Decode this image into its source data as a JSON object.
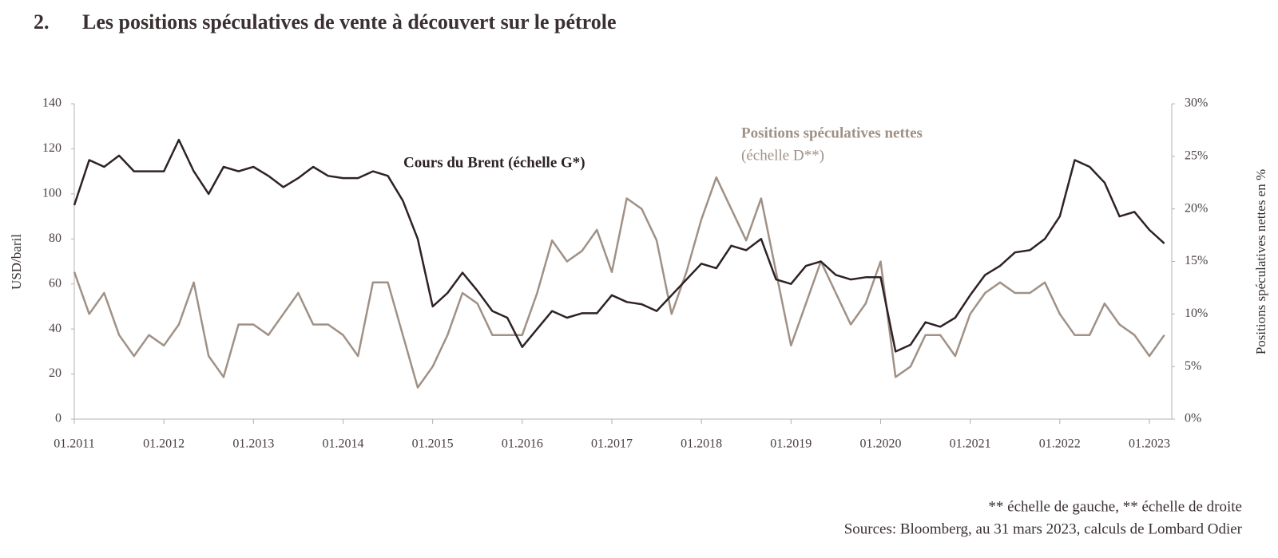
{
  "chart_data": {
    "type": "line",
    "number": "2.",
    "title": "Les positions spéculatives de vente à découvert sur le pétrole",
    "ylabel": "USD/baril",
    "y2label": "Positions spéculatives nettes en %",
    "annotations": [
      "Cours du Brent (échelle G*)",
      "Positions spéculatives nettes",
      "(échelle D**)"
    ],
    "footnotes": [
      "** échelle de gauche, ** échelle de droite",
      "Sources: Bloomberg, au 31 mars 2023, calculs de Lombard Odier"
    ],
    "x": [
      "01.2011",
      "03.2011",
      "05.2011",
      "07.2011",
      "09.2011",
      "11.2011",
      "01.2012",
      "03.2012",
      "05.2012",
      "07.2012",
      "09.2012",
      "11.2012",
      "01.2013",
      "03.2013",
      "05.2013",
      "07.2013",
      "09.2013",
      "11.2013",
      "01.2014",
      "03.2014",
      "05.2014",
      "07.2014",
      "09.2014",
      "11.2014",
      "01.2015",
      "03.2015",
      "05.2015",
      "07.2015",
      "09.2015",
      "11.2015",
      "01.2016",
      "03.2016",
      "05.2016",
      "07.2016",
      "09.2016",
      "11.2016",
      "01.2017",
      "03.2017",
      "05.2017",
      "07.2017",
      "09.2017",
      "11.2017",
      "01.2018",
      "03.2018",
      "05.2018",
      "07.2018",
      "09.2018",
      "11.2018",
      "01.2019",
      "03.2019",
      "05.2019",
      "07.2019",
      "09.2019",
      "11.2019",
      "01.2020",
      "03.2020",
      "05.2020",
      "07.2020",
      "09.2020",
      "11.2020",
      "01.2021",
      "03.2021",
      "05.2021",
      "07.2021",
      "09.2021",
      "11.2021",
      "01.2022",
      "03.2022",
      "05.2022",
      "07.2022",
      "09.2022",
      "11.2022",
      "01.2023",
      "03.2023"
    ],
    "series": [
      {
        "name": "Cours du Brent",
        "color": "#2e2224",
        "axis": "y",
        "values": [
          95,
          115,
          112,
          117,
          110,
          110,
          110,
          124,
          110,
          100,
          112,
          110,
          112,
          108,
          103,
          107,
          112,
          108,
          107,
          107,
          110,
          108,
          97,
          80,
          50,
          56,
          65,
          57,
          48,
          45,
          32,
          40,
          48,
          45,
          47,
          47,
          55,
          52,
          51,
          48,
          55,
          62,
          69,
          67,
          77,
          75,
          80,
          62,
          60,
          68,
          70,
          64,
          62,
          63,
          63,
          30,
          33,
          43,
          41,
          45,
          55,
          64,
          68,
          74,
          75,
          80,
          90,
          115,
          112,
          105,
          90,
          92,
          84,
          78
        ]
      },
      {
        "name": "Positions spéculatives nettes",
        "color": "#a09186",
        "axis": "y2",
        "values": [
          14,
          10,
          12,
          8,
          6,
          8,
          7,
          9,
          13,
          6,
          4,
          9,
          9,
          8,
          10,
          12,
          9,
          9,
          8,
          6,
          13,
          13,
          8,
          3,
          5,
          8,
          12,
          11,
          8,
          8,
          8,
          12,
          17,
          15,
          16,
          18,
          14,
          21,
          20,
          17,
          10,
          14,
          19,
          23,
          20,
          17,
          21,
          14,
          7,
          11,
          15,
          12,
          9,
          11,
          15,
          4,
          5,
          8,
          8,
          6,
          10,
          12,
          13,
          12,
          12,
          13,
          10,
          8,
          8,
          11,
          9,
          8,
          6,
          8
        ]
      }
    ],
    "xlim": [
      "01.2011",
      "04.2023"
    ],
    "xticks": [
      "01.2011",
      "01.2012",
      "01.2013",
      "01.2014",
      "01.2015",
      "01.2016",
      "01.2017",
      "01.2018",
      "01.2019",
      "01.2020",
      "01.2021",
      "01.2022",
      "01.2023"
    ],
    "ylim": [
      0,
      140
    ],
    "yticks": [
      0,
      20,
      40,
      60,
      80,
      100,
      120,
      140
    ],
    "y2lim": [
      0,
      30
    ],
    "y2ticks": [
      {
        "value": 0,
        "label": "0%"
      },
      {
        "value": 5,
        "label": "5%"
      },
      {
        "value": 10,
        "label": "10%"
      },
      {
        "value": 15,
        "label": "15%"
      },
      {
        "value": 20,
        "label": "20%"
      },
      {
        "value": 25,
        "label": "25%"
      },
      {
        "value": 30,
        "label": "30%"
      }
    ]
  }
}
